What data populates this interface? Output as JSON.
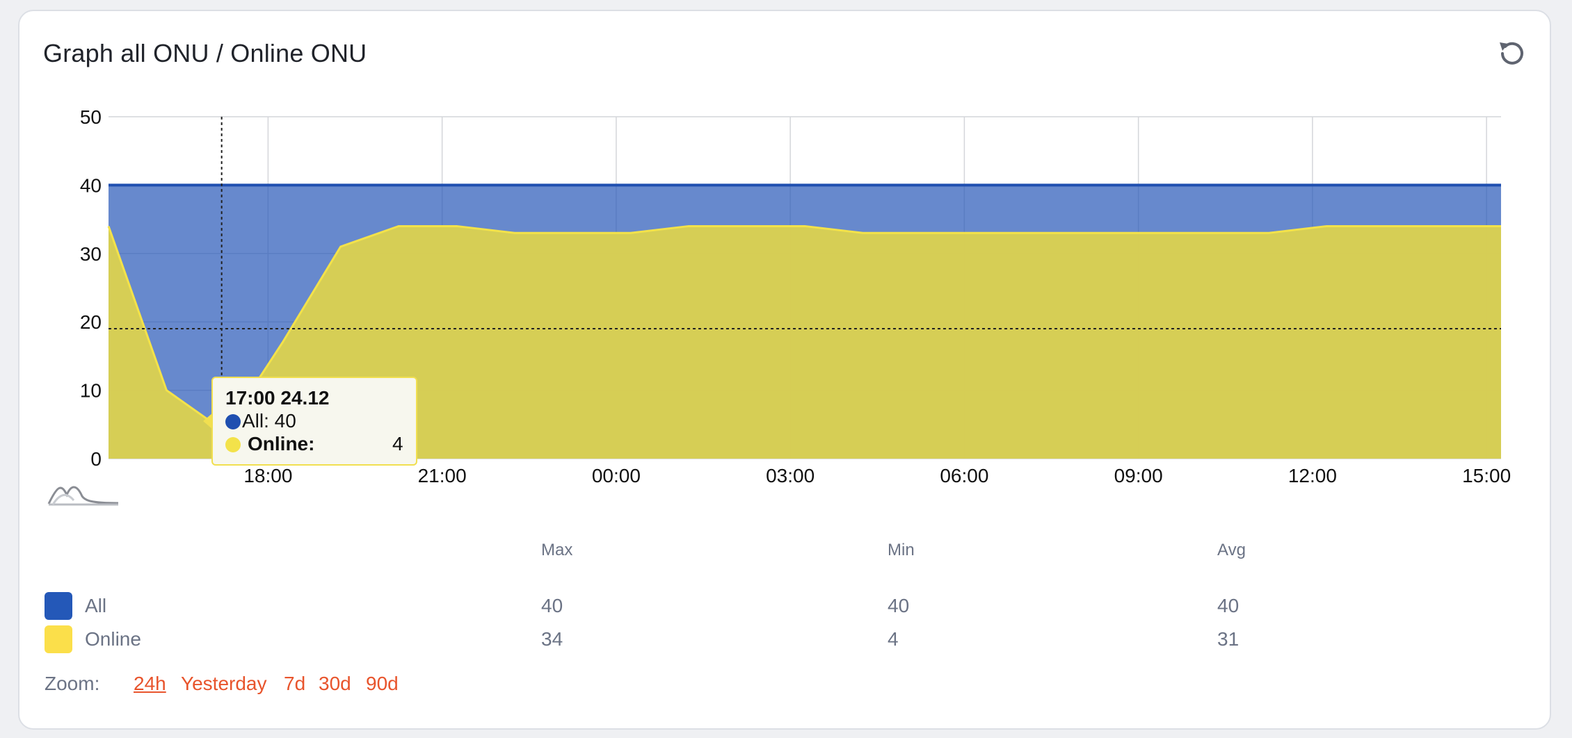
{
  "card": {
    "title": "Graph all ONU / Online ONU"
  },
  "colors": {
    "all_fill": "#2757b8",
    "all_line": "#1f4fb0",
    "online_fill": "#d8cf53",
    "online_line": "#f3e24a",
    "swatch_all": "#2458b8",
    "swatch_online": "#fbdf4a",
    "accent": "#e8542c"
  },
  "chart_data": {
    "type": "area",
    "title": "Graph all ONU / Online ONU",
    "xlabel": "",
    "ylabel": "",
    "ylim": [
      0,
      50
    ],
    "xlim": [
      15.25,
      39.25
    ],
    "yticks": [
      0,
      10,
      20,
      30,
      40,
      50
    ],
    "xticks": [
      {
        "label": "18:00",
        "x": 18
      },
      {
        "label": "21:00",
        "x": 21
      },
      {
        "label": "00:00",
        "x": 24
      },
      {
        "label": "03:00",
        "x": 27
      },
      {
        "label": "06:00",
        "x": 30
      },
      {
        "label": "09:00",
        "x": 33
      },
      {
        "label": "12:00",
        "x": 36
      },
      {
        "label": "15:00",
        "x": 39
      }
    ],
    "grid": true,
    "series": [
      {
        "name": "All",
        "color": "#2757b8",
        "x": [
          15.25,
          39.25
        ],
        "values": [
          40,
          40
        ]
      },
      {
        "name": "Online",
        "color": "#f3e24a",
        "x": [
          15.25,
          16.25,
          17.25,
          18.25,
          19.25,
          20.25,
          21.25,
          22.25,
          23.25,
          24.25,
          25.25,
          26.25,
          27.25,
          28.25,
          29.25,
          30.25,
          31.25,
          32.25,
          33.25,
          34.25,
          35.25,
          36.25,
          37.25,
          38.25,
          39.25
        ],
        "values": [
          34,
          10,
          4,
          17,
          31,
          34,
          34,
          33,
          33,
          33,
          34,
          34,
          34,
          33,
          33,
          33,
          33,
          33,
          33,
          33,
          33,
          34,
          34,
          34,
          34
        ]
      }
    ],
    "crosshair": {
      "x": 17.2,
      "y": 19
    },
    "tooltip": {
      "time": "17:00 24.12",
      "all_text": "All: 40",
      "online_label": "Online:",
      "online_value": "4"
    }
  },
  "stats": {
    "headers": {
      "max": "Max",
      "min": "Min",
      "avg": "Avg"
    },
    "rows": [
      {
        "name": "All",
        "max": "40",
        "min": "40",
        "avg": "40"
      },
      {
        "name": "Online",
        "max": "34",
        "min": "4",
        "avg": "31"
      }
    ]
  },
  "zoom": {
    "label": "Zoom:",
    "options": [
      "24h",
      "Yesterday",
      "7d",
      "30d",
      "90d"
    ]
  }
}
